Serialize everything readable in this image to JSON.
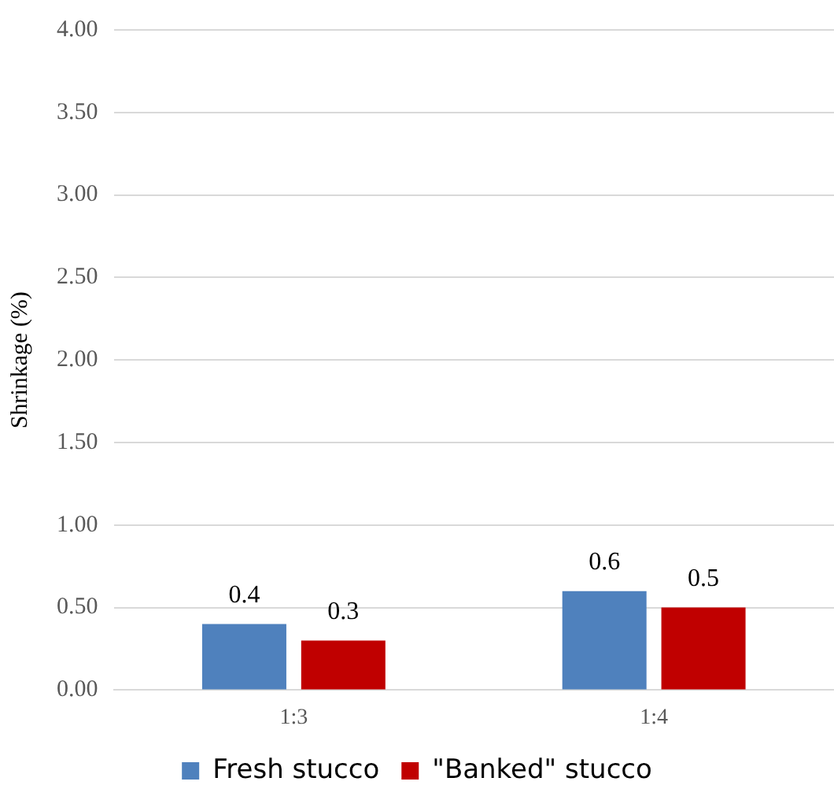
{
  "chart_data": {
    "type": "bar",
    "ylabel": "Shrinkage (%)",
    "categories": [
      "1:3",
      "1:4"
    ],
    "series": [
      {
        "name": "Fresh stucco",
        "color": "#4f81bd",
        "values": [
          0.4,
          0.6
        ]
      },
      {
        "name": "\"Banked\" stucco",
        "color": "#c00000",
        "values": [
          0.3,
          0.5
        ]
      }
    ],
    "ylim": [
      0,
      4
    ],
    "yticks": [
      {
        "value": 0,
        "label": "0.00"
      },
      {
        "value": 0.5,
        "label": "0.50"
      },
      {
        "value": 1,
        "label": "1.00"
      },
      {
        "value": 1.5,
        "label": "1.50"
      },
      {
        "value": 2,
        "label": "2.00"
      },
      {
        "value": 2.5,
        "label": "2.50"
      },
      {
        "value": 3,
        "label": "3.00"
      },
      {
        "value": 3.5,
        "label": "3.50"
      },
      {
        "value": 4,
        "label": "4.00"
      }
    ],
    "grid": "y",
    "legend": "bottom",
    "data_labels": true
  }
}
